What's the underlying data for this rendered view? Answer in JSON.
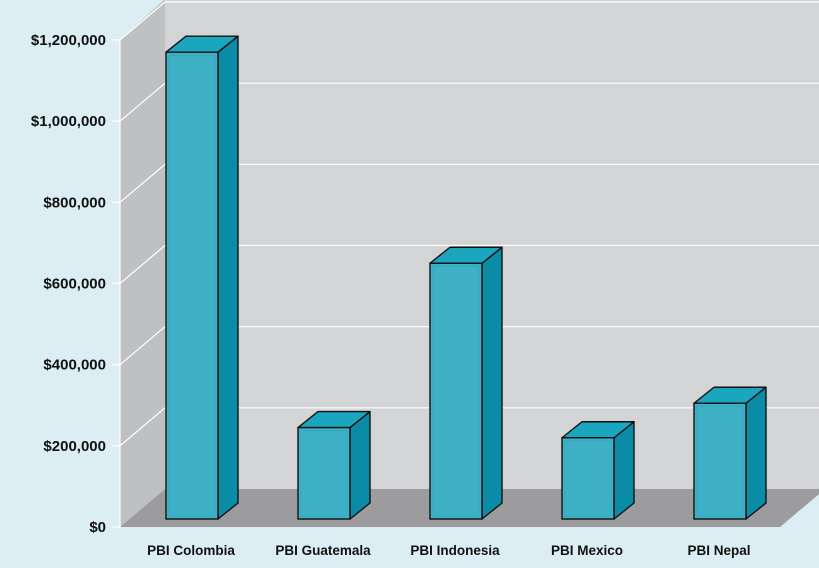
{
  "chart_data": {
    "type": "bar",
    "style": "3d-column",
    "categories": [
      "PBI Colombia",
      "PBI Guatemala",
      "PBI Indonesia",
      "PBI Mexico",
      "PBI Nepal"
    ],
    "values": [
      1165000,
      240000,
      645000,
      215000,
      300000
    ],
    "ylim": [
      0,
      1200000
    ],
    "yticks": [
      0,
      200000,
      400000,
      600000,
      800000,
      1000000,
      1200000
    ],
    "ytick_labels": [
      "$0",
      "$200,000",
      "$400,000",
      "$600,000",
      "$800,000",
      "$1,000,000",
      "$1,200,000"
    ],
    "title": "",
    "xlabel": "",
    "ylabel": "",
    "grid": true,
    "legend": "none",
    "colors": {
      "bar_front": "#3fb1c7",
      "bar_top": "#1ba6c0",
      "bar_side": "#0a8ca6",
      "bar_outline": "#111111",
      "wall": "#d3d4d6",
      "wall_side": "#bfc0c2",
      "floor": "#9c9c9e",
      "gridline": "#ffffff",
      "background": "#dcedf3"
    }
  }
}
